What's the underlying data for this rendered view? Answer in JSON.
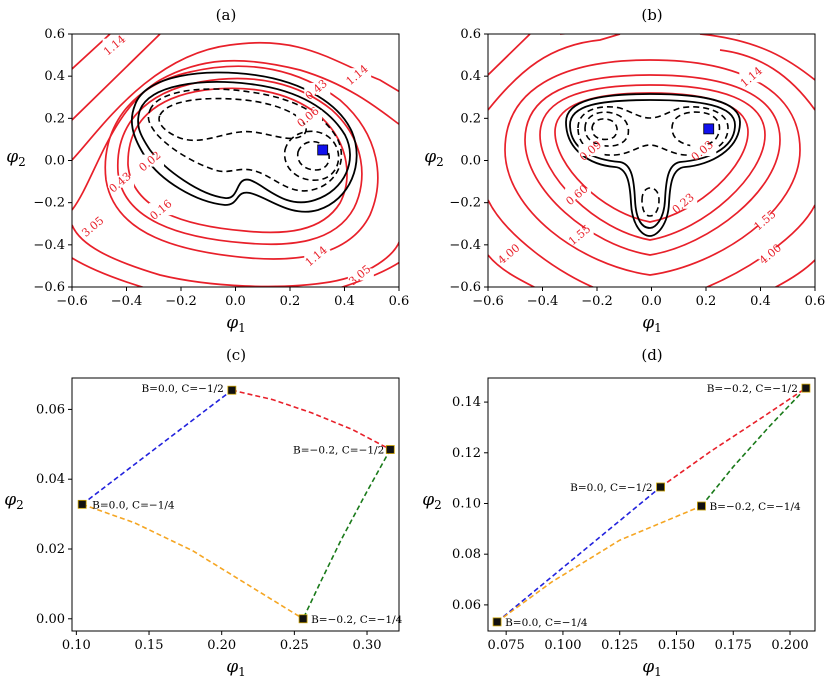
{
  "chart_data": [
    {
      "panel": "a",
      "type": "contour",
      "title": "(a)",
      "xlabel": "φ1",
      "ylabel": "φ2",
      "xlim": [
        -0.6,
        0.6
      ],
      "ylim": [
        -0.6,
        0.6
      ],
      "xticks": [
        "−0.6",
        "−0.4",
        "−0.2",
        "0.0",
        "0.2",
        "0.4",
        "0.6"
      ],
      "yticks": [
        "−0.6",
        "−0.4",
        "−0.2",
        "0.0",
        "0.2",
        "0.4",
        "0.6"
      ],
      "contour_labels": [
        {
          "text": "1.14",
          "x": -0.44,
          "y": 0.54
        },
        {
          "text": "1.14",
          "x": 0.45,
          "y": 0.4
        },
        {
          "text": "0.43",
          "x": 0.3,
          "y": 0.33
        },
        {
          "text": "0.06",
          "x": 0.27,
          "y": 0.2
        },
        {
          "text": "0.02",
          "x": -0.31,
          "y": -0.01
        },
        {
          "text": "0.43",
          "x": -0.42,
          "y": -0.11
        },
        {
          "text": "0.16",
          "x": -0.27,
          "y": -0.24
        },
        {
          "text": "3.05",
          "x": -0.52,
          "y": -0.32
        },
        {
          "text": "1.14",
          "x": 0.3,
          "y": -0.46
        },
        {
          "text": "3.05",
          "x": 0.46,
          "y": -0.55
        }
      ],
      "minimum": {
        "x": 0.32,
        "y": 0.05
      }
    },
    {
      "panel": "b",
      "type": "contour",
      "title": "(b)",
      "xlabel": "φ1",
      "ylabel": "φ2",
      "xlim": [
        -0.6,
        0.6
      ],
      "ylim": [
        -0.6,
        0.6
      ],
      "xticks": [
        "−0.6",
        "−0.4",
        "−0.2",
        "0.0",
        "0.2",
        "0.4",
        "0.6"
      ],
      "yticks": [
        "−0.6",
        "−0.4",
        "−0.2",
        "0.0",
        "0.2",
        "0.4",
        "0.6"
      ],
      "contour_labels": [
        {
          "text": "1.14",
          "x": 0.37,
          "y": 0.39
        },
        {
          "text": "0.09",
          "x": -0.22,
          "y": 0.04
        },
        {
          "text": "0.03",
          "x": 0.19,
          "y": 0.04
        },
        {
          "text": "0.60",
          "x": -0.27,
          "y": -0.17
        },
        {
          "text": "0.23",
          "x": 0.12,
          "y": -0.21
        },
        {
          "text": "1.55",
          "x": -0.26,
          "y": -0.36
        },
        {
          "text": "1.55",
          "x": 0.42,
          "y": -0.29
        },
        {
          "text": "4.00",
          "x": -0.52,
          "y": -0.45
        },
        {
          "text": "4.00",
          "x": 0.44,
          "y": -0.45
        }
      ],
      "minimum": {
        "x": 0.21,
        "y": 0.15
      }
    },
    {
      "panel": "c",
      "type": "line",
      "title": "(c)",
      "xlabel": "φ1",
      "ylabel": "φ2",
      "xlim": [
        0.097,
        0.322
      ],
      "ylim": [
        -0.0035,
        0.069
      ],
      "xticks": [
        0.1,
        0.15,
        0.2,
        0.25,
        0.3
      ],
      "xtick_labels": [
        "0.10",
        "0.15",
        "0.20",
        "0.25",
        "0.30"
      ],
      "yticks": [
        0.0,
        0.02,
        0.04,
        0.06
      ],
      "ytick_labels": [
        "0.00",
        "0.02",
        "0.04",
        "0.06"
      ],
      "points": [
        {
          "label": "B=0.0, C=−1/2",
          "x": 0.207,
          "y": 0.0655
        },
        {
          "label": "B=−0.2, C=−1/2",
          "x": 0.316,
          "y": 0.0485
        },
        {
          "label": "B=0.0, C=−1/4",
          "x": 0.104,
          "y": 0.0328
        },
        {
          "label": "B=−0.2, C=−1/4",
          "x": 0.256,
          "y": 0.0
        }
      ],
      "series": [
        {
          "color": "#2222dd",
          "x": [
            0.104,
            0.207
          ],
          "y": [
            0.0328,
            0.0655
          ]
        },
        {
          "color": "#e8202a",
          "x": [
            0.207,
            0.235,
            0.262,
            0.29,
            0.316
          ],
          "y": [
            0.0655,
            0.0628,
            0.059,
            0.0542,
            0.0485
          ]
        },
        {
          "color": "#1a7a1a",
          "x": [
            0.316,
            0.3,
            0.282,
            0.268,
            0.256
          ],
          "y": [
            0.0485,
            0.0365,
            0.0225,
            0.0105,
            0.0
          ]
        },
        {
          "color": "#f5a623",
          "x": [
            0.104,
            0.14,
            0.18,
            0.215,
            0.256
          ],
          "y": [
            0.0328,
            0.0275,
            0.0195,
            0.0105,
            0.0
          ]
        }
      ]
    },
    {
      "panel": "d",
      "type": "line",
      "title": "(d)",
      "xlabel": "φ1",
      "ylabel": "φ2",
      "xlim": [
        0.067,
        0.211
      ],
      "ylim": [
        0.0497,
        0.1495
      ],
      "xticks": [
        0.075,
        0.1,
        0.125,
        0.15,
        0.175,
        0.2
      ],
      "xtick_labels": [
        "0.075",
        "0.100",
        "0.125",
        "0.150",
        "0.175",
        "0.200"
      ],
      "yticks": [
        0.06,
        0.08,
        0.1,
        0.12,
        0.14
      ],
      "ytick_labels": [
        "0.06",
        "0.08",
        "0.10",
        "0.12",
        "0.14"
      ],
      "points": [
        {
          "label": "B=−0.2, C=−1/2",
          "x": 0.207,
          "y": 0.1455
        },
        {
          "label": "B=0.0, C=−1/2",
          "x": 0.143,
          "y": 0.1065
        },
        {
          "label": "B=−0.2, C=−1/4",
          "x": 0.161,
          "y": 0.099
        },
        {
          "label": "B=0.0, C=−1/4",
          "x": 0.071,
          "y": 0.0533
        }
      ],
      "series": [
        {
          "color": "#2222dd",
          "x": [
            0.071,
            0.143
          ],
          "y": [
            0.0533,
            0.1065
          ]
        },
        {
          "color": "#e8202a",
          "x": [
            0.143,
            0.165,
            0.187,
            0.207
          ],
          "y": [
            0.1065,
            0.1205,
            0.1335,
            0.1455
          ]
        },
        {
          "color": "#1a7a1a",
          "x": [
            0.161,
            0.175,
            0.191,
            0.207
          ],
          "y": [
            0.099,
            0.1145,
            0.1305,
            0.1455
          ]
        },
        {
          "color": "#f5a623",
          "x": [
            0.071,
            0.095,
            0.125,
            0.161
          ],
          "y": [
            0.0533,
            0.069,
            0.0855,
            0.099
          ]
        }
      ]
    }
  ]
}
